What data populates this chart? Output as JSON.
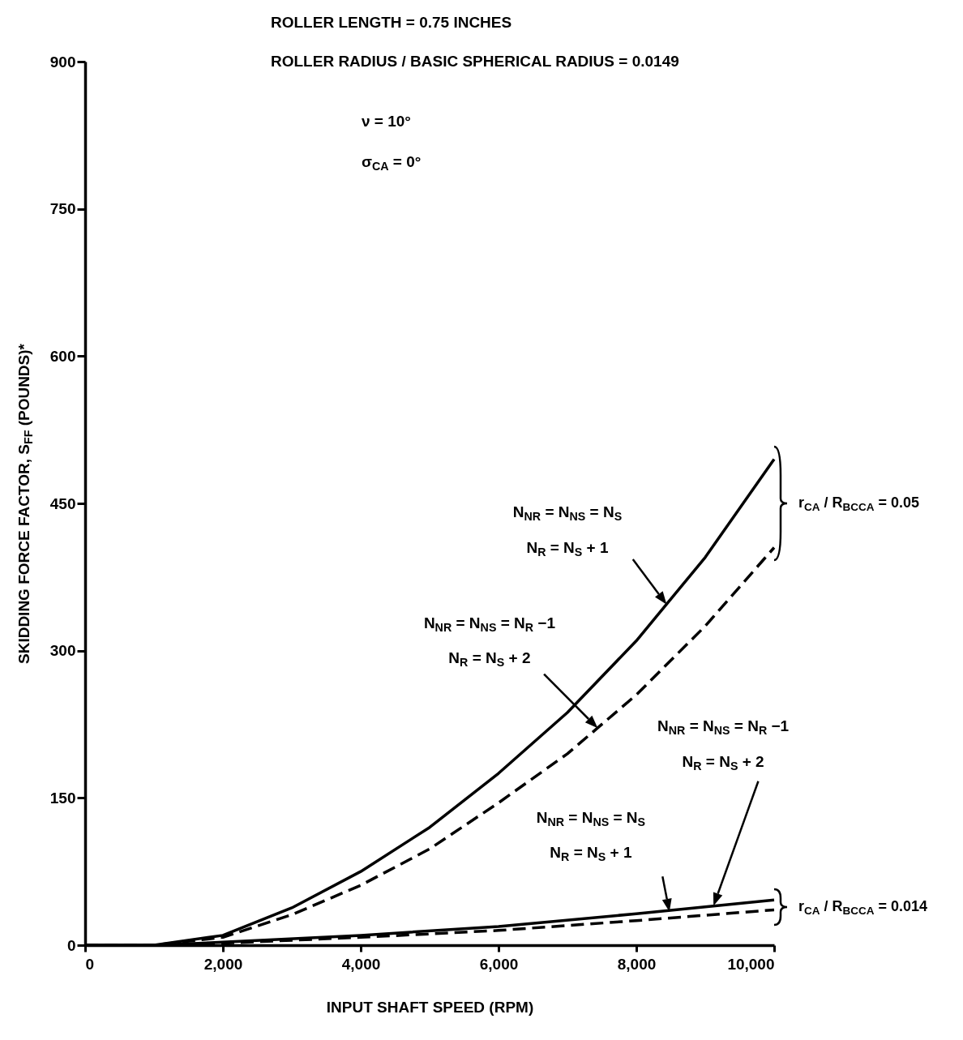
{
  "chart_data": {
    "type": "line",
    "xlabel": "INPUT SHAFT SPEED (RPM)",
    "ylabel": "SKIDDING FORCE FACTOR, S$_{FF}$ (POUNDS)*",
    "xlim": [
      0,
      10000
    ],
    "ylim": [
      0,
      900
    ],
    "xticks": [
      0,
      {
        "value": 2000,
        "label": "2,000"
      },
      {
        "value": 4000,
        "label": "4,000"
      },
      {
        "value": 6000,
        "label": "6,000"
      },
      {
        "value": 8000,
        "label": "8,000"
      },
      {
        "value": 10000,
        "label": "10,000"
      }
    ],
    "yticks": [
      0,
      150,
      300,
      450,
      600,
      750,
      900
    ],
    "grid": false,
    "series": [
      {
        "color": "#000000",
        "line_style": "solid",
        "x": [
          0,
          1000,
          2000,
          3000,
          4000,
          5000,
          6000,
          7000,
          8000,
          9000,
          10000
        ],
        "values": [
          0,
          0,
          10,
          38,
          75,
          120,
          175,
          237,
          310,
          395,
          495
        ]
      },
      {
        "color": "#000000",
        "line_style": "dashed",
        "x": [
          0,
          1000,
          2000,
          3000,
          4000,
          5000,
          6000,
          7000,
          8000,
          9000,
          10000
        ],
        "values": [
          0,
          0,
          8,
          31,
          61,
          98,
          145,
          195,
          255,
          325,
          405
        ]
      },
      {
        "color": "#000000",
        "line_style": "solid",
        "x": [
          0,
          1000,
          2000,
          4000,
          6000,
          8000,
          10000
        ],
        "values": [
          0,
          0,
          3,
          10,
          19,
          32,
          46
        ]
      },
      {
        "color": "#000000",
        "line_style": "dashed",
        "x": [
          0,
          1000,
          2000,
          4000,
          6000,
          8000,
          10000
        ],
        "values": [
          0,
          0,
          2,
          8,
          15,
          25,
          36
        ]
      }
    ],
    "annotations": [
      "ROLLER LENGTH = 0.75 INCHES",
      "ROLLER RADIUS / BASIC SPHERICAL RADIUS = 0.0149",
      "ν = 10°",
      "σ$_{CA}$ = 0°",
      "r$_{CA}$ / R$_{BCCA}$ = 0.05",
      "r$_{CA}$ / R$_{BCCA}$ = 0.014",
      "N$_{NR}$ = N$_{NS}$ = N$_{S}$",
      "N$_{R}$ = N$_{S}$ + 1",
      "N$_{NR}$ = N$_{NS}$ = N$_{R}$ −1",
      "N$_{R}$ = N$_{S}$ + 2",
      "N$_{NR}$ = N$_{NS}$ = N$_{R}$ −1",
      "N$_{R}$ = N$_{S}$ + 2",
      "N$_{NR}$ = N$_{NS}$ = N$_{S}$",
      "N$_{R}$ = N$_{S}$ + 1"
    ]
  }
}
